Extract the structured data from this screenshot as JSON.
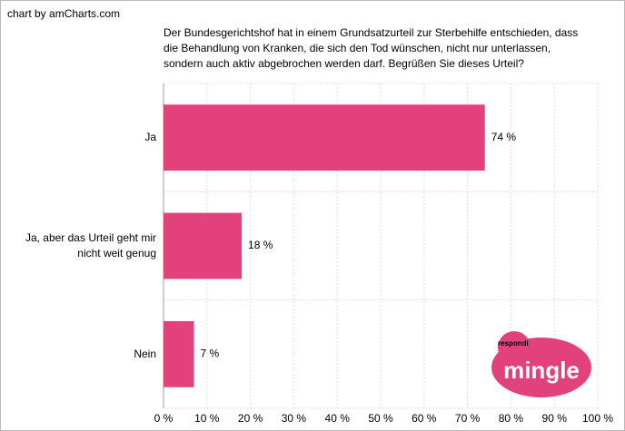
{
  "credit": "chart by amCharts.com",
  "logo": {
    "small": "respondi",
    "main": "mingle"
  },
  "chart_data": {
    "type": "bar",
    "orientation": "horizontal",
    "title": [
      "Der Bundesgerichtshof hat in einem Grundsatzurteil zur Sterbehilfe entschieden, dass",
      "die Behandlung von Kranken, die sich den Tod wünschen, nicht nur unterlassen,",
      "sondern auch aktiv abgebrochen werden darf. Begrüßen Sie dieses Urteil?"
    ],
    "categories": [
      "Ja",
      "Ja, aber das Urteil geht mir nicht weit genug",
      "Nein"
    ],
    "values": [
      74,
      18,
      7
    ],
    "value_labels": [
      "74 %",
      "18 %",
      "7 %"
    ],
    "color": "#e2417b",
    "xlim": [
      0,
      100
    ],
    "xticks": [
      {
        "value": 0,
        "label": "0 %"
      },
      {
        "value": 10,
        "label": "10 %"
      },
      {
        "value": 20,
        "label": "20 %"
      },
      {
        "value": 30,
        "label": "30 %"
      },
      {
        "value": 40,
        "label": "40 %"
      },
      {
        "value": 50,
        "label": "50 %"
      },
      {
        "value": 60,
        "label": "60 %"
      },
      {
        "value": 70,
        "label": "70 %"
      },
      {
        "value": 80,
        "label": "80 %"
      },
      {
        "value": 90,
        "label": "90 %"
      },
      {
        "value": 100,
        "label": "100 %"
      }
    ],
    "grid": true
  }
}
